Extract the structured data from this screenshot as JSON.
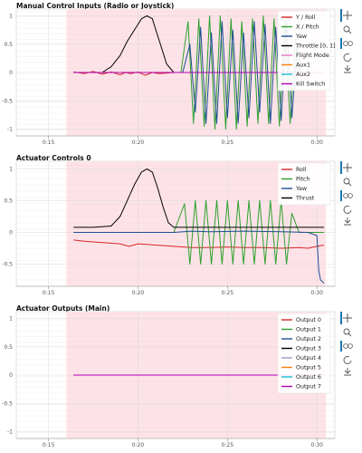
{
  "plot_background": "#fde3e8",
  "outside_background": "#ffffff",
  "toolbar": {
    "accent": "#1f77b4",
    "tools": [
      "pan-icon",
      "box-zoom-icon",
      "wheel-zoom-icon",
      "reset-icon",
      "save-icon"
    ]
  },
  "chart_data": [
    {
      "type": "line",
      "title": "Manual Control Inputs (Radio or Joystick)",
      "xlabel": "",
      "ylabel": "",
      "x_ticks": [
        "0:15",
        "0:20",
        "0:25",
        "0:30"
      ],
      "x_tick_values": [
        15,
        20,
        25,
        30
      ],
      "xlim": [
        13.2,
        31.0
      ],
      "plot_band": [
        16.0,
        30.5
      ],
      "ylim": [
        -1.12,
        1.12
      ],
      "y_ticks": [
        1,
        0.5,
        0,
        -0.5,
        -1
      ],
      "y_tick_labels": [
        "1",
        "0.5",
        "0",
        "-0.5",
        "-1"
      ],
      "grid": true,
      "legend_position": "top-right",
      "series": [
        {
          "name": "Y / Roll",
          "color": "#d62728",
          "x": [
            16.4,
            17.0,
            17.5,
            18.0,
            18.5,
            19.0,
            19.3,
            19.6,
            20.0,
            20.4,
            20.8,
            21.2,
            22.0,
            23.0,
            24.0,
            26.0,
            28.0,
            30.4
          ],
          "y": [
            0.01,
            -0.02,
            0.02,
            -0.03,
            0.01,
            -0.04,
            0.0,
            -0.02,
            0.01,
            -0.05,
            0.0,
            -0.02,
            0.0,
            0.0,
            0.0,
            0.0,
            0.0,
            0.0
          ]
        },
        {
          "name": "X / Pitch",
          "color": "#2ca02c",
          "x": [
            16.4,
            22.4,
            22.8,
            23.1,
            23.4,
            23.7,
            24.0,
            24.3,
            24.6,
            24.9,
            25.2,
            25.5,
            25.8,
            26.1,
            26.4,
            26.7,
            27.0,
            27.3,
            27.6,
            27.9,
            28.2,
            28.5,
            28.8,
            29.0,
            29.4,
            30.4
          ],
          "y": [
            0,
            0,
            0.9,
            -0.9,
            0.95,
            -0.95,
            1.0,
            -1.0,
            1.0,
            -1.0,
            0.95,
            -1.0,
            0.9,
            -0.95,
            0.95,
            -0.9,
            1.0,
            -0.9,
            0.95,
            -0.95,
            0.9,
            -0.9,
            0.6,
            0,
            0,
            0
          ]
        },
        {
          "name": "Yaw",
          "color": "#1f4e96",
          "x": [
            16.4,
            22.5,
            22.9,
            23.2,
            23.5,
            23.8,
            24.1,
            24.4,
            24.7,
            25.0,
            25.3,
            25.6,
            25.9,
            26.2,
            26.5,
            26.8,
            27.1,
            27.4,
            27.7,
            28.0,
            28.3,
            28.6,
            28.9,
            29.1,
            29.4,
            30.4
          ],
          "y": [
            0,
            0,
            0.5,
            -0.7,
            0.8,
            -0.9,
            0.7,
            -0.9,
            0.9,
            -0.8,
            0.75,
            -0.9,
            0.7,
            -0.8,
            0.9,
            -0.7,
            0.85,
            -0.9,
            0.8,
            -0.85,
            0.9,
            -0.8,
            0.5,
            0,
            0,
            0
          ]
        },
        {
          "name": "Throttle [0, 1]",
          "color": "#000000",
          "x": [
            16.4,
            17.0,
            18.0,
            18.5,
            19.0,
            19.4,
            19.8,
            20.2,
            20.5,
            20.8,
            21.0,
            21.3,
            21.6,
            22.0,
            30.4
          ],
          "y": [
            0.0,
            0.0,
            0.0,
            0.1,
            0.3,
            0.55,
            0.75,
            0.95,
            1.0,
            0.95,
            0.75,
            0.45,
            0.15,
            0.0,
            0.0
          ]
        },
        {
          "name": "Flight Mode",
          "color": "#e377c2",
          "x": [
            16.4,
            30.4
          ],
          "y": [
            0,
            0
          ]
        },
        {
          "name": "Aux1",
          "color": "#ff7f0e",
          "x": [
            16.4,
            30.4
          ],
          "y": [
            0,
            0
          ]
        },
        {
          "name": "Aux2",
          "color": "#17becf",
          "x": [
            16.4,
            30.4
          ],
          "y": [
            0,
            0
          ]
        },
        {
          "name": "Kill Switch",
          "color": "#b000b5",
          "x": [
            16.4,
            30.4
          ],
          "y": [
            0,
            0
          ]
        }
      ]
    },
    {
      "type": "line",
      "title": "Actuator Controls 0",
      "xlabel": "",
      "ylabel": "",
      "x_ticks": [
        "0:15",
        "0:20",
        "0:25",
        "0:30"
      ],
      "x_tick_values": [
        15,
        20,
        25,
        30
      ],
      "xlim": [
        13.2,
        31.0
      ],
      "plot_band": [
        16.0,
        30.5
      ],
      "ylim": [
        -0.85,
        1.12
      ],
      "y_ticks": [
        1,
        0.5,
        0,
        -0.5
      ],
      "y_tick_labels": [
        "1",
        "0.5",
        "0",
        "-0.5"
      ],
      "grid": true,
      "legend_position": "top-right",
      "series": [
        {
          "name": "Roll",
          "color": "#d62728",
          "x": [
            16.4,
            17.0,
            18.0,
            19.0,
            19.5,
            20.0,
            21.0,
            22.0,
            23.0,
            24.0,
            25.0,
            26.0,
            27.0,
            28.0,
            29.0,
            29.5,
            30.0,
            30.4
          ],
          "y": [
            -0.12,
            -0.14,
            -0.16,
            -0.18,
            -0.22,
            -0.18,
            -0.2,
            -0.22,
            -0.24,
            -0.24,
            -0.23,
            -0.24,
            -0.24,
            -0.25,
            -0.24,
            -0.25,
            -0.22,
            -0.2
          ]
        },
        {
          "name": "Pitch",
          "color": "#2ca02c",
          "x": [
            16.4,
            22.0,
            22.6,
            22.9,
            23.2,
            23.5,
            23.8,
            24.1,
            24.4,
            24.7,
            25.0,
            25.3,
            25.6,
            25.9,
            26.2,
            26.5,
            26.8,
            27.1,
            27.4,
            27.7,
            28.0,
            28.3,
            28.6,
            29.0,
            29.5,
            30.4
          ],
          "y": [
            0,
            0,
            0.45,
            -0.5,
            0.5,
            -0.5,
            0.5,
            -0.5,
            0.5,
            -0.5,
            0.5,
            -0.5,
            0.5,
            -0.5,
            0.5,
            -0.5,
            0.5,
            -0.5,
            0.5,
            -0.5,
            0.5,
            -0.5,
            0.3,
            0,
            0,
            0
          ]
        },
        {
          "name": "Yaw",
          "color": "#1f4e96",
          "x": [
            16.4,
            18.0,
            20.0,
            22.0,
            23.0,
            24.0,
            26.0,
            28.0,
            29.5,
            30.0,
            30.1,
            30.2,
            30.4
          ],
          "y": [
            0.0,
            0.0,
            0.0,
            0.0,
            0.02,
            0.01,
            0.02,
            0.01,
            0.0,
            -0.05,
            -0.6,
            -0.75,
            -0.8
          ]
        },
        {
          "name": "Thrust",
          "color": "#000000",
          "x": [
            16.4,
            17.5,
            18.5,
            19.0,
            19.4,
            19.8,
            20.2,
            20.5,
            20.8,
            21.1,
            21.4,
            21.7,
            22.0,
            30.4
          ],
          "y": [
            0.08,
            0.08,
            0.1,
            0.25,
            0.5,
            0.75,
            0.95,
            1.0,
            0.95,
            0.7,
            0.4,
            0.15,
            0.08,
            0.08
          ]
        }
      ]
    },
    {
      "type": "line",
      "title": "Actuator Outputs (Main)",
      "xlabel": "",
      "ylabel": "",
      "x_ticks": [
        "0:15",
        "0:20",
        "0:25",
        "0:30"
      ],
      "x_tick_values": [
        15,
        20,
        25,
        30
      ],
      "xlim": [
        13.2,
        31.0
      ],
      "plot_band": [
        16.0,
        30.5
      ],
      "ylim": [
        -1.12,
        1.12
      ],
      "y_ticks": [
        1,
        0.5,
        0,
        -0.5,
        -1
      ],
      "y_tick_labels": [
        "1",
        "0.5",
        "0",
        "-0.5",
        "-1"
      ],
      "grid": true,
      "legend_position": "top-right",
      "series": [
        {
          "name": "Output 0",
          "color": "#d62728",
          "x": [
            16.4,
            30.4
          ],
          "y": [
            0,
            0
          ]
        },
        {
          "name": "Output 1",
          "color": "#2ca02c",
          "x": [
            16.4,
            30.4
          ],
          "y": [
            0,
            0
          ]
        },
        {
          "name": "Output 2",
          "color": "#1f4e96",
          "x": [
            16.4,
            30.4
          ],
          "y": [
            0,
            0
          ]
        },
        {
          "name": "Output 3",
          "color": "#000000",
          "x": [
            16.4,
            30.4
          ],
          "y": [
            0,
            0
          ]
        },
        {
          "name": "Output 4",
          "color": "#9e9ac8",
          "x": [
            16.4,
            30.4
          ],
          "y": [
            0,
            0
          ]
        },
        {
          "name": "Output 5",
          "color": "#ff7f0e",
          "x": [
            16.4,
            30.4
          ],
          "y": [
            0,
            0
          ]
        },
        {
          "name": "Output 6",
          "color": "#17becf",
          "x": [
            16.4,
            30.4
          ],
          "y": [
            0,
            0
          ]
        },
        {
          "name": "Output 7",
          "color": "#b000b5",
          "x": [
            16.4,
            30.4
          ],
          "y": [
            0,
            0
          ]
        }
      ]
    }
  ]
}
